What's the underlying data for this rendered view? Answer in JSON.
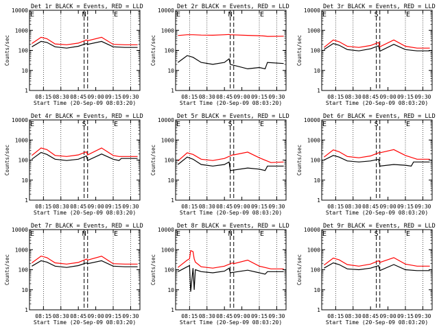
{
  "figure": {
    "colors": {
      "events": "#000000",
      "lld": "#ff0000",
      "axis": "#000000",
      "background": "#ffffff"
    },
    "x_ticks": {
      "left": [
        "08:15",
        "08:30",
        "08:45",
        "09:00",
        "09:15",
        "09:30"
      ],
      "other": [
        "08:15",
        "08:30",
        "08:45",
        "09:00",
        "09:15",
        "09:30"
      ]
    },
    "y_ticks": [
      "1",
      "10",
      "100",
      "1000",
      "10000"
    ],
    "marker_letter_left": "E",
    "marker_letter_right": "E"
  },
  "chart_data": [
    {
      "type": "line",
      "title": "Det 1r BLACK = Events, RED = LLD",
      "xlabel": "Start Time (20-Sep-09 08:03:20)",
      "ylabel": "Counts/sec",
      "ylim": [
        1,
        10000
      ],
      "yscale": "log",
      "xlim": [
        "08:03",
        "09:38"
      ],
      "center_marker": "N",
      "series": [
        {
          "name": "Events",
          "x": [
            "08:05",
            "08:13",
            "08:18",
            "08:25",
            "08:35",
            "08:45",
            "08:52",
            "08:53",
            "09:05",
            "09:15",
            "09:25",
            "09:36"
          ],
          "values": [
            150,
            280,
            250,
            150,
            130,
            160,
            220,
            200,
            280,
            150,
            140,
            140
          ]
        },
        {
          "name": "LLD",
          "x": [
            "08:05",
            "08:13",
            "08:18",
            "08:25",
            "08:35",
            "08:45",
            "08:52",
            "08:53",
            "09:05",
            "09:15",
            "09:25",
            "09:36"
          ],
          "values": [
            220,
            450,
            380,
            210,
            190,
            230,
            330,
            300,
            450,
            200,
            190,
            190
          ]
        }
      ]
    },
    {
      "type": "line",
      "title": "Det 2r BLACK = Events, RED = LLD",
      "xlabel": "Start Time (20-Sep-09 08:03:20)",
      "ylabel": "Counts/sec",
      "ylim": [
        1,
        10000
      ],
      "yscale": "log",
      "xlim": [
        "08:03",
        "09:38"
      ],
      "center_marker": "N",
      "series": [
        {
          "name": "Events",
          "x": [
            "08:05",
            "08:13",
            "08:18",
            "08:25",
            "08:35",
            "08:45",
            "08:49",
            "08:50",
            "09:05",
            "09:15",
            "09:20",
            "09:22",
            "09:36"
          ],
          "values": [
            25,
            55,
            45,
            25,
            20,
            25,
            38,
            20,
            12,
            14,
            12,
            25,
            22
          ]
        },
        {
          "name": "LLD",
          "x": [
            "08:05",
            "08:13",
            "08:18",
            "08:25",
            "08:35",
            "08:45",
            "08:49",
            "08:50",
            "09:05",
            "09:15",
            "09:20",
            "09:22",
            "09:36"
          ],
          "values": [
            550,
            600,
            600,
            580,
            570,
            600,
            620,
            600,
            560,
            540,
            520,
            500,
            510
          ]
        }
      ]
    },
    {
      "type": "line",
      "title": "Det 3r BLACK = Events, RED = LLD",
      "xlabel": "Start Time (20-Sep-09 08:03:20)",
      "ylabel": "Counts/sec",
      "ylim": [
        1,
        10000
      ],
      "yscale": "log",
      "xlim": [
        "08:03",
        "09:38"
      ],
      "center_marker": "S",
      "series": [
        {
          "name": "Events",
          "x": [
            "08:05",
            "08:13",
            "08:18",
            "08:25",
            "08:35",
            "08:45",
            "08:52",
            "08:53",
            "09:05",
            "09:15",
            "09:25",
            "09:36"
          ],
          "values": [
            110,
            220,
            180,
            110,
            95,
            120,
            170,
            90,
            200,
            110,
            95,
            95
          ]
        },
        {
          "name": "LLD",
          "x": [
            "08:05",
            "08:13",
            "08:18",
            "08:25",
            "08:35",
            "08:45",
            "08:52",
            "08:53",
            "09:05",
            "09:15",
            "09:25",
            "09:36"
          ],
          "values": [
            140,
            330,
            270,
            160,
            140,
            175,
            250,
            150,
            330,
            160,
            130,
            130
          ]
        }
      ]
    },
    {
      "type": "line",
      "title": "Det 4r BLACK = Events, RED = LLD",
      "xlabel": "Start Time (20-Sep-09 08:03:20)",
      "ylabel": "Counts/sec",
      "ylim": [
        1,
        10000
      ],
      "yscale": "log",
      "xlim": [
        "08:03",
        "09:38"
      ],
      "center_marker": "S",
      "series": [
        {
          "name": "Events",
          "x": [
            "08:05",
            "08:13",
            "08:18",
            "08:25",
            "08:35",
            "08:45",
            "08:52",
            "08:53",
            "09:05",
            "09:15",
            "09:20",
            "09:22",
            "09:36"
          ],
          "values": [
            110,
            240,
            190,
            110,
            95,
            110,
            160,
            95,
            200,
            110,
            95,
            120,
            120
          ]
        },
        {
          "name": "LLD",
          "x": [
            "08:05",
            "08:13",
            "08:18",
            "08:25",
            "08:35",
            "08:45",
            "08:52",
            "08:53",
            "09:05",
            "09:15",
            "09:20",
            "09:22",
            "09:36"
          ],
          "values": [
            170,
            400,
            330,
            170,
            150,
            180,
            260,
            180,
            400,
            170,
            150,
            150,
            150
          ]
        }
      ]
    },
    {
      "type": "line",
      "title": "Det 5r BLACK = Events, RED = LLD",
      "xlabel": "Start Time (20-Sep-09 08:03:20)",
      "ylabel": "Counts/sec",
      "ylim": [
        1,
        10000
      ],
      "yscale": "log",
      "xlim": [
        "08:03",
        "09:38"
      ],
      "center_marker": "S",
      "series": [
        {
          "name": "Events",
          "x": [
            "08:05",
            "08:13",
            "08:18",
            "08:25",
            "08:35",
            "08:45",
            "08:49",
            "08:50",
            "09:05",
            "09:15",
            "09:20",
            "09:22",
            "09:36"
          ],
          "values": [
            60,
            140,
            110,
            60,
            50,
            60,
            80,
            30,
            40,
            35,
            30,
            50,
            50
          ]
        },
        {
          "name": "LLD",
          "x": [
            "08:05",
            "08:13",
            "08:18",
            "08:25",
            "08:35",
            "08:45",
            "08:52",
            "08:53",
            "09:05",
            "09:15",
            "09:25",
            "09:36"
          ],
          "values": [
            90,
            230,
            190,
            110,
            95,
            120,
            180,
            180,
            250,
            130,
            75,
            80
          ]
        }
      ]
    },
    {
      "type": "line",
      "title": "Det 6r BLACK = Events, RED = LLD",
      "xlabel": "Start Time (20-Sep-09 08:03:20)",
      "ylabel": "Counts/sec",
      "ylim": [
        1,
        10000
      ],
      "yscale": "log",
      "xlim": [
        "08:03",
        "09:38"
      ],
      "center_marker": "S",
      "series": [
        {
          "name": "Events",
          "x": [
            "08:05",
            "08:13",
            "08:18",
            "08:25",
            "08:35",
            "08:45",
            "08:52",
            "08:53",
            "09:05",
            "09:15",
            "09:20",
            "09:22",
            "09:36"
          ],
          "values": [
            100,
            170,
            140,
            90,
            80,
            90,
            110,
            50,
            60,
            55,
            50,
            80,
            80
          ]
        },
        {
          "name": "LLD",
          "x": [
            "08:05",
            "08:13",
            "08:18",
            "08:25",
            "08:35",
            "08:45",
            "08:52",
            "08:53",
            "09:05",
            "09:15",
            "09:25",
            "09:36"
          ],
          "values": [
            140,
            320,
            260,
            150,
            130,
            160,
            230,
            230,
            330,
            170,
            110,
            110
          ]
        }
      ]
    },
    {
      "type": "line",
      "title": "Det 7r BLACK = Events, RED = LLD",
      "xlabel": "Start Time (20-Sep-09 08:03:20)",
      "ylabel": "Counts/sec",
      "ylim": [
        1,
        10000
      ],
      "yscale": "log",
      "xlim": [
        "08:03",
        "09:38"
      ],
      "center_marker": "N",
      "series": [
        {
          "name": "Events",
          "x": [
            "08:05",
            "08:13",
            "08:18",
            "08:25",
            "08:35",
            "08:45",
            "08:52",
            "08:53",
            "09:05",
            "09:15",
            "09:25",
            "09:36"
          ],
          "values": [
            150,
            280,
            240,
            150,
            130,
            160,
            220,
            200,
            280,
            150,
            140,
            140
          ]
        },
        {
          "name": "LLD",
          "x": [
            "08:05",
            "08:13",
            "08:18",
            "08:25",
            "08:35",
            "08:45",
            "08:52",
            "08:53",
            "09:05",
            "09:15",
            "09:25",
            "09:36"
          ],
          "values": [
            220,
            480,
            400,
            220,
            190,
            230,
            340,
            300,
            470,
            200,
            190,
            190
          ]
        }
      ]
    },
    {
      "type": "line",
      "title": "Det 8r BLACK = Events, RED = LLD",
      "xlabel": "Start Time (20-Sep-09 08:03:20)",
      "ylabel": "Counts/sec",
      "ylim": [
        1,
        10000
      ],
      "yscale": "log",
      "xlim": [
        "08:03",
        "09:38"
      ],
      "center_marker": "N",
      "series": [
        {
          "name": "Events",
          "x": [
            "08:05",
            "08:13",
            "08:15",
            "08:16",
            "08:18",
            "08:19",
            "08:20",
            "08:25",
            "08:35",
            "08:45",
            "08:49",
            "08:50",
            "09:05",
            "09:15",
            "09:20",
            "09:22",
            "09:36"
          ],
          "values": [
            80,
            140,
            160,
            8,
            120,
            10,
            100,
            80,
            70,
            85,
            120,
            70,
            95,
            70,
            60,
            80,
            80
          ]
        },
        {
          "name": "LLD",
          "x": [
            "08:05",
            "08:13",
            "08:15",
            "08:16",
            "08:18",
            "08:19",
            "08:20",
            "08:25",
            "08:35",
            "08:45",
            "08:52",
            "08:53",
            "09:05",
            "09:15",
            "09:25",
            "09:36"
          ],
          "values": [
            130,
            300,
            350,
            900,
            800,
            350,
            240,
            140,
            120,
            150,
            220,
            200,
            300,
            150,
            110,
            110
          ]
        }
      ]
    },
    {
      "type": "line",
      "title": "Det 9r BLACK = Events, RED = LLD",
      "xlabel": "Start Time (20-Sep-09 08:03:20)",
      "ylabel": "Counts/sec",
      "ylim": [
        1,
        10000
      ],
      "yscale": "log",
      "xlim": [
        "08:03",
        "09:38"
      ],
      "center_marker": "S",
      "series": [
        {
          "name": "Events",
          "x": [
            "08:05",
            "08:13",
            "08:18",
            "08:25",
            "08:35",
            "08:45",
            "08:52",
            "08:53",
            "09:05",
            "09:15",
            "09:25",
            "09:36"
          ],
          "values": [
            120,
            220,
            180,
            110,
            100,
            120,
            160,
            90,
            180,
            100,
            90,
            90
          ]
        },
        {
          "name": "LLD",
          "x": [
            "08:05",
            "08:13",
            "08:18",
            "08:25",
            "08:35",
            "08:45",
            "08:52",
            "08:53",
            "09:05",
            "09:15",
            "09:25",
            "09:36"
          ],
          "values": [
            170,
            380,
            310,
            180,
            150,
            190,
            280,
            230,
            400,
            190,
            150,
            150
          ]
        }
      ]
    }
  ]
}
